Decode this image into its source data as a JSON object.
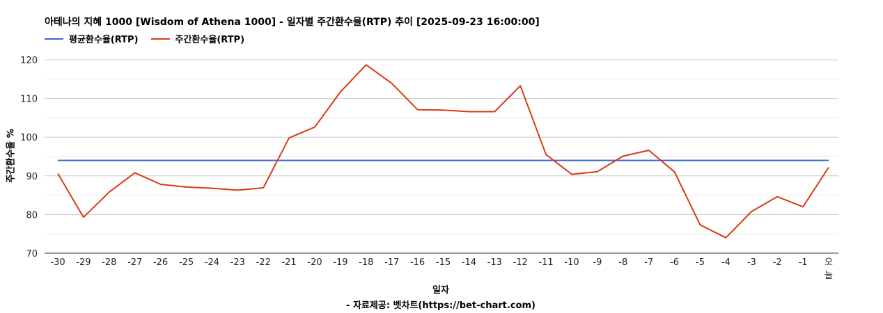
{
  "chart_data": {
    "type": "line",
    "title": "아테나의 지혜 1000 [Wisdom of Athena 1000] - 일자별 주간환수율(RTP) 추이 [2025-09-23 16:00:00]",
    "xlabel": "일자",
    "ylabel": "주간환수율 %",
    "source": "- 자료제공: 벳차트(https://bet-chart.com)",
    "ylim": [
      70,
      120
    ],
    "yticks": [
      70,
      80,
      90,
      100,
      110,
      120
    ],
    "grid": true,
    "legend_position": "top-left",
    "categories": [
      "-30",
      "-29",
      "-28",
      "-27",
      "-26",
      "-25",
      "-24",
      "-23",
      "-22",
      "-21",
      "-20",
      "-19",
      "-18",
      "-17",
      "-16",
      "-15",
      "-14",
      "-13",
      "-12",
      "-11",
      "-10",
      "-9",
      "-8",
      "-7",
      "-6",
      "-5",
      "-4",
      "-3",
      "-2",
      "-1",
      "오늘"
    ],
    "series": [
      {
        "name": "평균환수율(RTP)",
        "color": "#3366cc",
        "values": [
          94,
          94,
          94,
          94,
          94,
          94,
          94,
          94,
          94,
          94,
          94,
          94,
          94,
          94,
          94,
          94,
          94,
          94,
          94,
          94,
          94,
          94,
          94,
          94,
          94,
          94,
          94,
          94,
          94,
          94,
          94
        ]
      },
      {
        "name": "주간환수율(RTP)",
        "color": "#dc3912",
        "values": [
          90.6,
          79.3,
          85.8,
          90.8,
          87.8,
          87.1,
          86.8,
          86.3,
          86.9,
          99.8,
          102.6,
          111.7,
          118.7,
          113.9,
          107.1,
          107.0,
          106.6,
          106.6,
          113.3,
          95.5,
          90.4,
          91.1,
          95.1,
          96.6,
          91.0,
          77.3,
          74.0,
          80.8,
          84.6,
          82.0,
          92.2
        ]
      }
    ]
  }
}
